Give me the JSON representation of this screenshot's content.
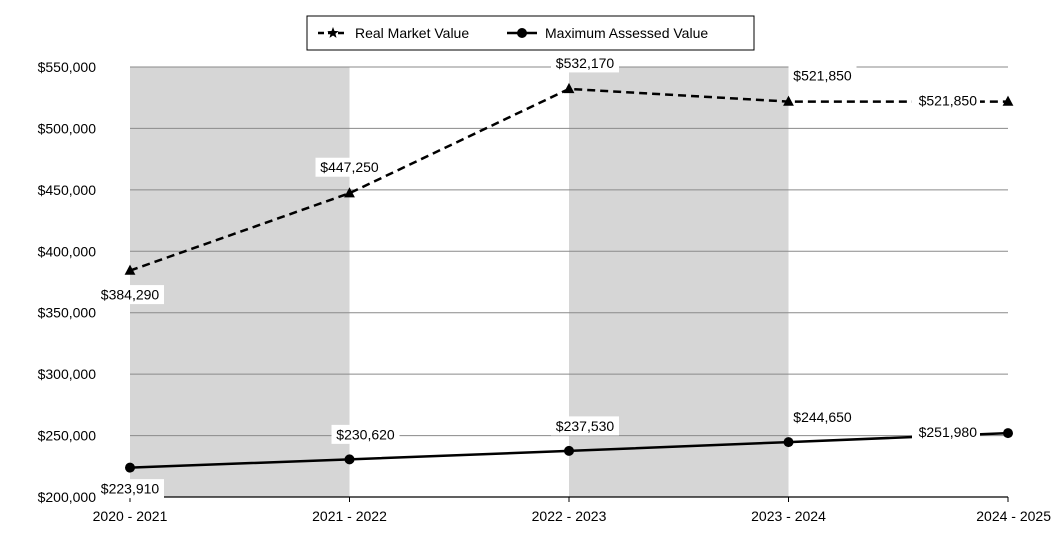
{
  "chart_data": {
    "type": "line",
    "categories": [
      "2020 - 2021",
      "2021 - 2022",
      "2022 - 2023",
      "2023 - 2024",
      "2024 - 2025"
    ],
    "series": [
      {
        "name": "Real Market Value",
        "values": [
          384290,
          447250,
          532170,
          521850,
          521850
        ],
        "labels": [
          "$384,290",
          "$447,250",
          "$532,170",
          "$521,850",
          "$521,850"
        ],
        "style": "dashed",
        "marker": "triangle"
      },
      {
        "name": "Maximum Assessed Value",
        "values": [
          223910,
          230620,
          237530,
          244650,
          251980
        ],
        "labels": [
          "$223,910",
          "$230,620",
          "$237,530",
          "$244,650",
          "$251,980"
        ],
        "style": "solid",
        "marker": "circle"
      }
    ],
    "ylim": [
      200000,
      550000
    ],
    "yticks": [
      200000,
      250000,
      300000,
      350000,
      400000,
      450000,
      500000,
      550000
    ],
    "ytick_labels": [
      "$200,000",
      "$250,000",
      "$300,000",
      "$350,000",
      "$400,000",
      "$450,000",
      "$500,000",
      "$550,000"
    ],
    "grid": true,
    "alternating_bands": true,
    "band_color": "#d6d6d6",
    "legend_position": "top-center",
    "line_color": "#000000"
  }
}
